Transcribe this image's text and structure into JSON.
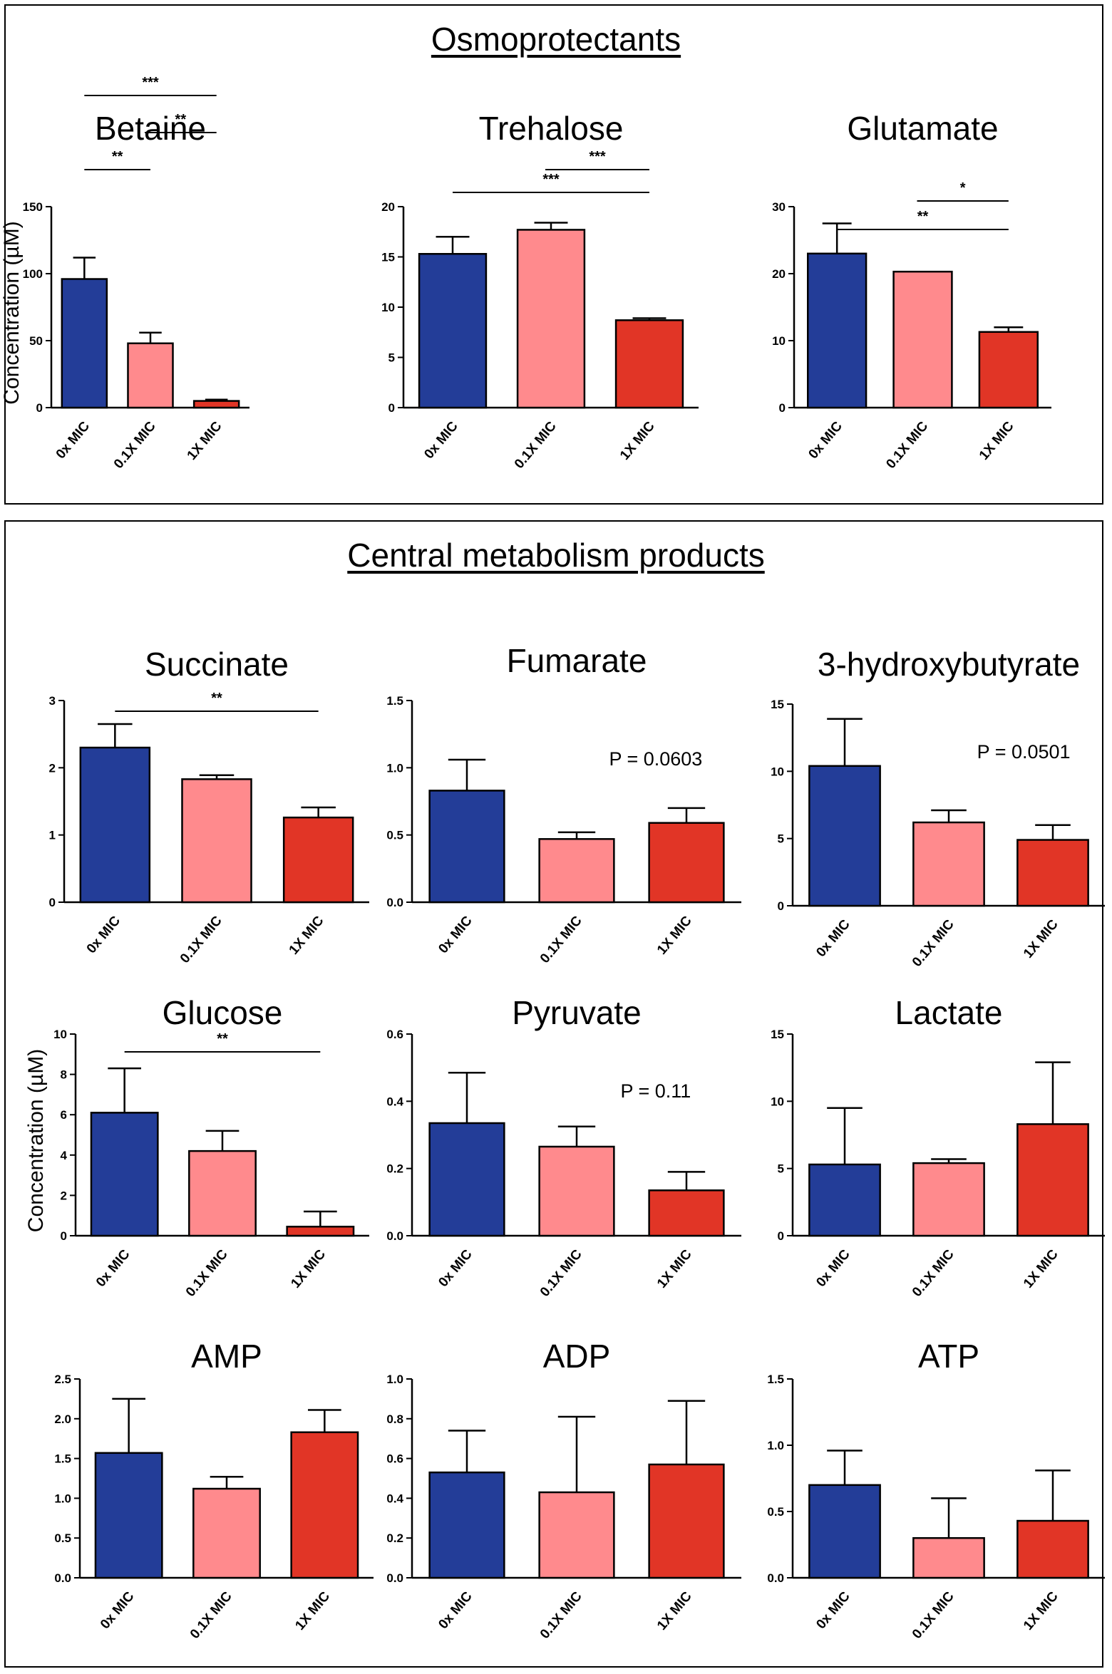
{
  "sections": [
    {
      "title": "Osmoprotectants"
    },
    {
      "title": "Central metabolism products"
    }
  ],
  "colors": {
    "0x MIC": "#233d98",
    "0.1X MIC": "#ff8a8d",
    "1X MIC": "#e13526"
  },
  "chart_data": [
    {
      "type": "bar",
      "title": "Betaine",
      "ylabel": "Concentration (µM)",
      "categories": [
        "0x MIC",
        "0.1X MIC",
        "1X MIC"
      ],
      "values": [
        96,
        48,
        5
      ],
      "errors": [
        16,
        8,
        1
      ],
      "ylim": [
        0,
        150
      ],
      "yticks": [
        "0",
        "50",
        "100",
        "150"
      ],
      "significance": [
        {
          "from": 0,
          "to": 1,
          "label": "**"
        },
        {
          "from": 1,
          "to": 2,
          "label": "**"
        },
        {
          "from": 0,
          "to": 2,
          "label": "***"
        }
      ]
    },
    {
      "type": "bar",
      "title": "Trehalose",
      "categories": [
        "0x MIC",
        "0.1X MIC",
        "1X MIC"
      ],
      "values": [
        15.3,
        17.7,
        8.7
      ],
      "errors": [
        1.7,
        0.7,
        0.2
      ],
      "ylim": [
        0,
        20
      ],
      "yticks": [
        "0",
        "5",
        "10",
        "15",
        "20"
      ],
      "significance": [
        {
          "from": 0,
          "to": 2,
          "label": "***"
        },
        {
          "from": 1,
          "to": 2,
          "label": "***"
        }
      ]
    },
    {
      "type": "bar",
      "title": "Glutamate",
      "categories": [
        "0x MIC",
        "0.1X MIC",
        "1X MIC"
      ],
      "values": [
        23,
        20.3,
        11.3
      ],
      "errors": [
        4.5,
        0,
        0.7
      ],
      "ylim": [
        0,
        30
      ],
      "yticks": [
        "0",
        "10",
        "20",
        "30"
      ],
      "significance": [
        {
          "from": 0,
          "to": 2,
          "label": "**"
        },
        {
          "from": 1,
          "to": 2,
          "label": "*"
        }
      ]
    },
    {
      "type": "bar",
      "title": "Succinate",
      "categories": [
        "0x MIC",
        "0.1X MIC",
        "1X MIC"
      ],
      "values": [
        2.3,
        1.83,
        1.26
      ],
      "errors": [
        0.35,
        0.06,
        0.15
      ],
      "ylim": [
        0,
        3
      ],
      "yticks": [
        "0",
        "1",
        "2",
        "3"
      ],
      "significance": [
        {
          "from": 0,
          "to": 2,
          "label": "**"
        }
      ]
    },
    {
      "type": "bar",
      "title": "Fumarate",
      "categories": [
        "0x MIC",
        "0.1X MIC",
        "1X MIC"
      ],
      "values": [
        0.83,
        0.47,
        0.59
      ],
      "errors": [
        0.23,
        0.05,
        0.11
      ],
      "ylim": [
        0,
        1.5
      ],
      "yticks": [
        "0.0",
        "0.5",
        "1.0",
        "1.5"
      ],
      "pvalue": "P = 0.0603"
    },
    {
      "type": "bar",
      "title": "3-hydroxybutyrate",
      "categories": [
        "0x MIC",
        "0.1X MIC",
        "1X MIC"
      ],
      "values": [
        10.4,
        6.2,
        4.9
      ],
      "errors": [
        3.5,
        0.9,
        1.1
      ],
      "ylim": [
        0,
        15
      ],
      "yticks": [
        "0",
        "5",
        "10",
        "15"
      ],
      "pvalue": "P = 0.0501"
    },
    {
      "type": "bar",
      "title": "Glucose",
      "ylabel": "Concentration (µM)",
      "categories": [
        "0x MIC",
        "0.1X MIC",
        "1X MIC"
      ],
      "values": [
        6.1,
        4.2,
        0.45
      ],
      "errors": [
        2.2,
        1,
        0.75
      ],
      "ylim": [
        0,
        10
      ],
      "yticks": [
        "0",
        "2",
        "4",
        "6",
        "8",
        "10"
      ],
      "significance": [
        {
          "from": 0,
          "to": 2,
          "label": "**"
        }
      ]
    },
    {
      "type": "bar",
      "title": "Pyruvate",
      "categories": [
        "0x MIC",
        "0.1X MIC",
        "1X MIC"
      ],
      "values": [
        0.335,
        0.265,
        0.135
      ],
      "errors": [
        0.15,
        0.06,
        0.055
      ],
      "ylim": [
        0,
        0.6
      ],
      "yticks": [
        "0.0",
        "0.2",
        "0.4",
        "0.6"
      ],
      "pvalue": "P = 0.11"
    },
    {
      "type": "bar",
      "title": "Lactate",
      "categories": [
        "0x MIC",
        "0.1X MIC",
        "1X MIC"
      ],
      "values": [
        5.3,
        5.4,
        8.3
      ],
      "errors": [
        4.2,
        0.3,
        4.6
      ],
      "ylim": [
        0,
        15
      ],
      "yticks": [
        "0",
        "5",
        "10",
        "15"
      ]
    },
    {
      "type": "bar",
      "title": "AMP",
      "categories": [
        "0x MIC",
        "0.1X MIC",
        "1X MIC"
      ],
      "values": [
        1.57,
        1.12,
        1.83
      ],
      "errors": [
        0.68,
        0.15,
        0.28
      ],
      "ylim": [
        0,
        2.5
      ],
      "yticks": [
        "0.0",
        "0.5",
        "1.0",
        "1.5",
        "2.0",
        "2.5"
      ]
    },
    {
      "type": "bar",
      "title": "ADP",
      "categories": [
        "0x MIC",
        "0.1X MIC",
        "1X MIC"
      ],
      "values": [
        0.53,
        0.43,
        0.57
      ],
      "errors": [
        0.21,
        0.38,
        0.32
      ],
      "ylim": [
        0,
        1.0
      ],
      "yticks": [
        "0.0",
        "0.2",
        "0.4",
        "0.6",
        "0.8",
        "1.0"
      ]
    },
    {
      "type": "bar",
      "title": "ATP",
      "categories": [
        "0x MIC",
        "0.1X MIC",
        "1X MIC"
      ],
      "values": [
        0.7,
        0.3,
        0.43
      ],
      "errors": [
        0.26,
        0.3,
        0.38
      ],
      "ylim": [
        0,
        1.5
      ],
      "yticks": [
        "0.0",
        "0.5",
        "1.0",
        "1.5"
      ]
    }
  ]
}
